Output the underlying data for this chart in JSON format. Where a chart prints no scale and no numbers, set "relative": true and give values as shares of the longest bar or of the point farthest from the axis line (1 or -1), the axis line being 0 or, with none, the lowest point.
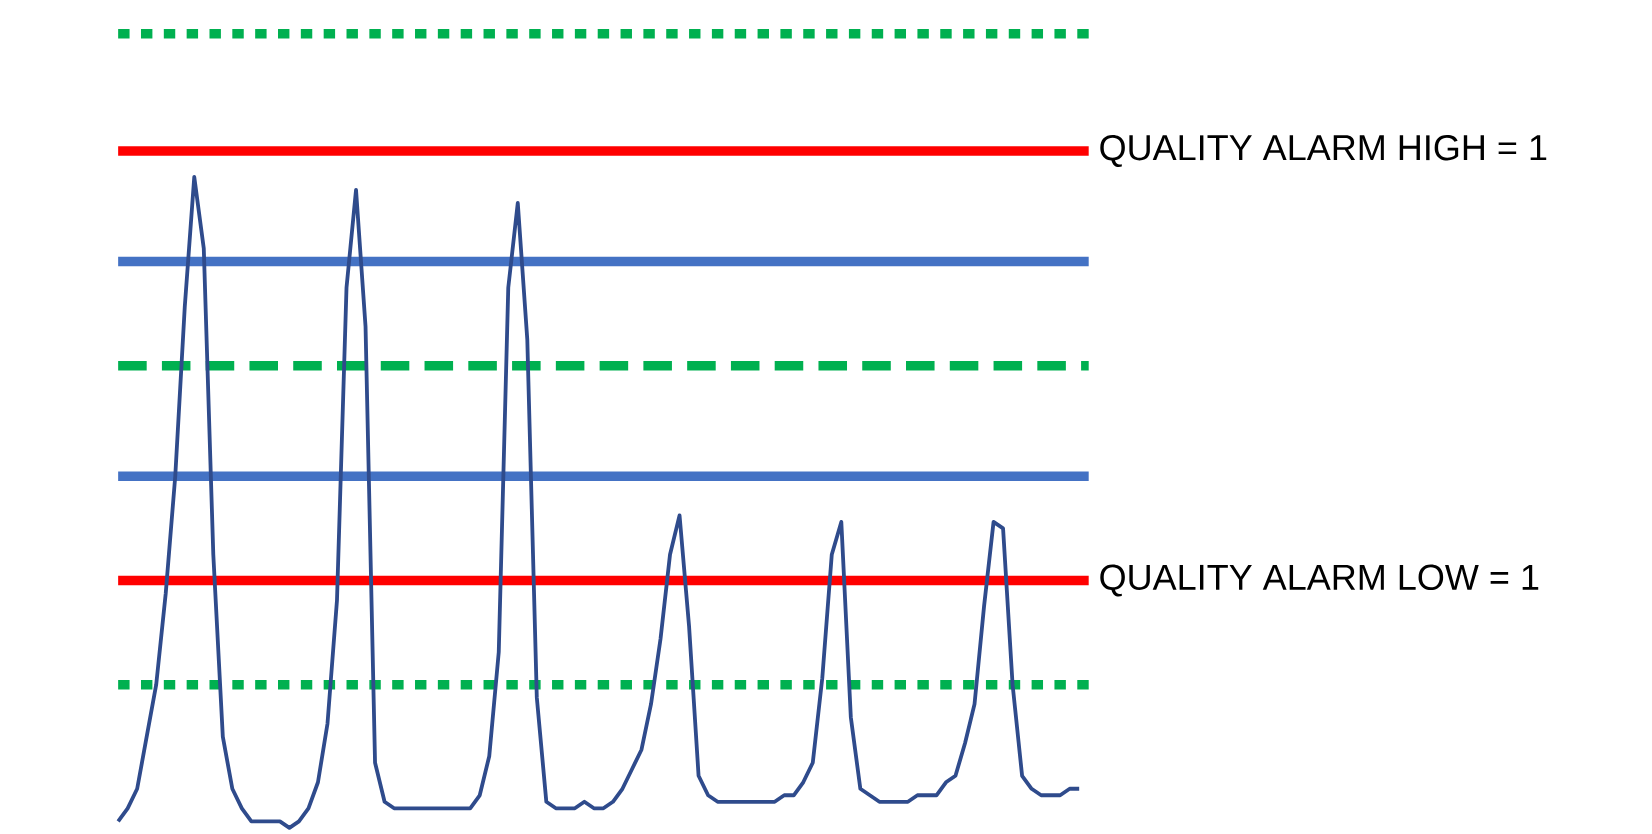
{
  "chart_data": {
    "type": "line",
    "relative": true,
    "marker": "none",
    "line_style": "solid",
    "categories": [
      null,
      null,
      null,
      null,
      null,
      null,
      null,
      null,
      null,
      null,
      null,
      null,
      null,
      null,
      null,
      null,
      null,
      null,
      null,
      null,
      null,
      null,
      null,
      null,
      null,
      null,
      null,
      null,
      null,
      null,
      null,
      null,
      null,
      null,
      null,
      null,
      null,
      null,
      null,
      null,
      null,
      null,
      null,
      null,
      null,
      null,
      null,
      null,
      null,
      null,
      null,
      null,
      null,
      null,
      null,
      null,
      null,
      null,
      null,
      null,
      null,
      null,
      null,
      null,
      null,
      null,
      null,
      null,
      null,
      null,
      null,
      null,
      null,
      null,
      null,
      null,
      null,
      null,
      null,
      null,
      null,
      null,
      null,
      null,
      null,
      null,
      null,
      null,
      null,
      null,
      null,
      null,
      null,
      null,
      null,
      null,
      null,
      null,
      null,
      null,
      null,
      null
    ],
    "series": [
      {
        "color": "#2f4b8c",
        "values": [
          0.01,
          0.03,
          0.06,
          0.14,
          0.22,
          0.36,
          0.54,
          0.8,
          1.0,
          0.89,
          0.42,
          0.14,
          0.06,
          0.03,
          0.01,
          0.01,
          0.01,
          0.01,
          0.0,
          0.01,
          0.03,
          0.07,
          0.16,
          0.35,
          0.83,
          0.98,
          0.77,
          0.1,
          0.04,
          0.03,
          0.03,
          0.03,
          0.03,
          0.03,
          0.03,
          0.03,
          0.03,
          0.03,
          0.05,
          0.11,
          0.27,
          0.83,
          0.96,
          0.75,
          0.2,
          0.04,
          0.03,
          0.03,
          0.03,
          0.04,
          0.03,
          0.03,
          0.04,
          0.06,
          0.09,
          0.12,
          0.19,
          0.29,
          0.42,
          0.48,
          0.31,
          0.08,
          0.05,
          0.04,
          0.04,
          0.04,
          0.04,
          0.04,
          0.04,
          0.04,
          0.05,
          0.05,
          0.07,
          0.1,
          0.23,
          0.42,
          0.47,
          0.17,
          0.06,
          0.05,
          0.04,
          0.04,
          0.04,
          0.04,
          0.05,
          0.05,
          0.05,
          0.07,
          0.08,
          0.13,
          0.19,
          0.34,
          0.47,
          0.46,
          0.22,
          0.08,
          0.06,
          0.05,
          0.05,
          0.05,
          0.06,
          0.06
        ]
      }
    ],
    "ref_lines": [
      {
        "axis": "y",
        "value": 1.22,
        "color": "#00b050",
        "line_style": "dotted"
      },
      {
        "axis": "y",
        "value": 1.04,
        "color": "#ff0000",
        "line_style": "solid"
      },
      {
        "axis": "y",
        "value": 0.87,
        "color": "#4472c4",
        "line_style": "solid"
      },
      {
        "axis": "y",
        "value": 0.71,
        "color": "#00b050",
        "line_style": "dashed"
      },
      {
        "axis": "y",
        "value": 0.54,
        "color": "#4472c4",
        "line_style": "solid"
      },
      {
        "axis": "y",
        "value": 0.38,
        "color": "#ff0000",
        "line_style": "solid"
      },
      {
        "axis": "y",
        "value": 0.22,
        "color": "#00b050",
        "line_style": "dotted"
      }
    ],
    "annotations": [
      "QUALITY ALARM HIGH = 1",
      "QUALITY ALARM LOW = 1"
    ]
  }
}
